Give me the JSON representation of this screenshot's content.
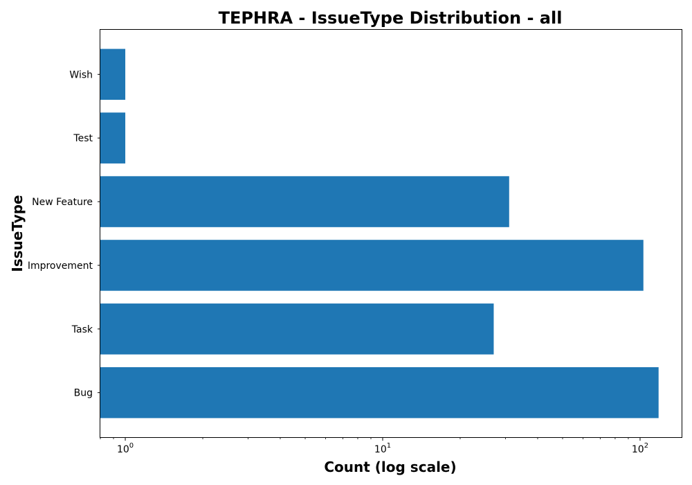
{
  "chart_data": {
    "type": "bar",
    "orientation": "horizontal",
    "title": "TEPHRA - IssueType Distribution - all",
    "xlabel": "Count (log scale)",
    "ylabel": "IssueType",
    "xscale": "log",
    "xlim": [
      0.8,
      145
    ],
    "categories": [
      "Bug",
      "Task",
      "Improvement",
      "New Feature",
      "Test",
      "Wish"
    ],
    "values": [
      118,
      27,
      103,
      31,
      1,
      1
    ],
    "bar_color": "#1f77b4",
    "grid": false,
    "x_tick_labels": [
      {
        "base": "10",
        "exp": "0",
        "value": 1
      },
      {
        "base": "10",
        "exp": "1",
        "value": 10
      },
      {
        "base": "10",
        "exp": "2",
        "value": 100
      }
    ]
  }
}
